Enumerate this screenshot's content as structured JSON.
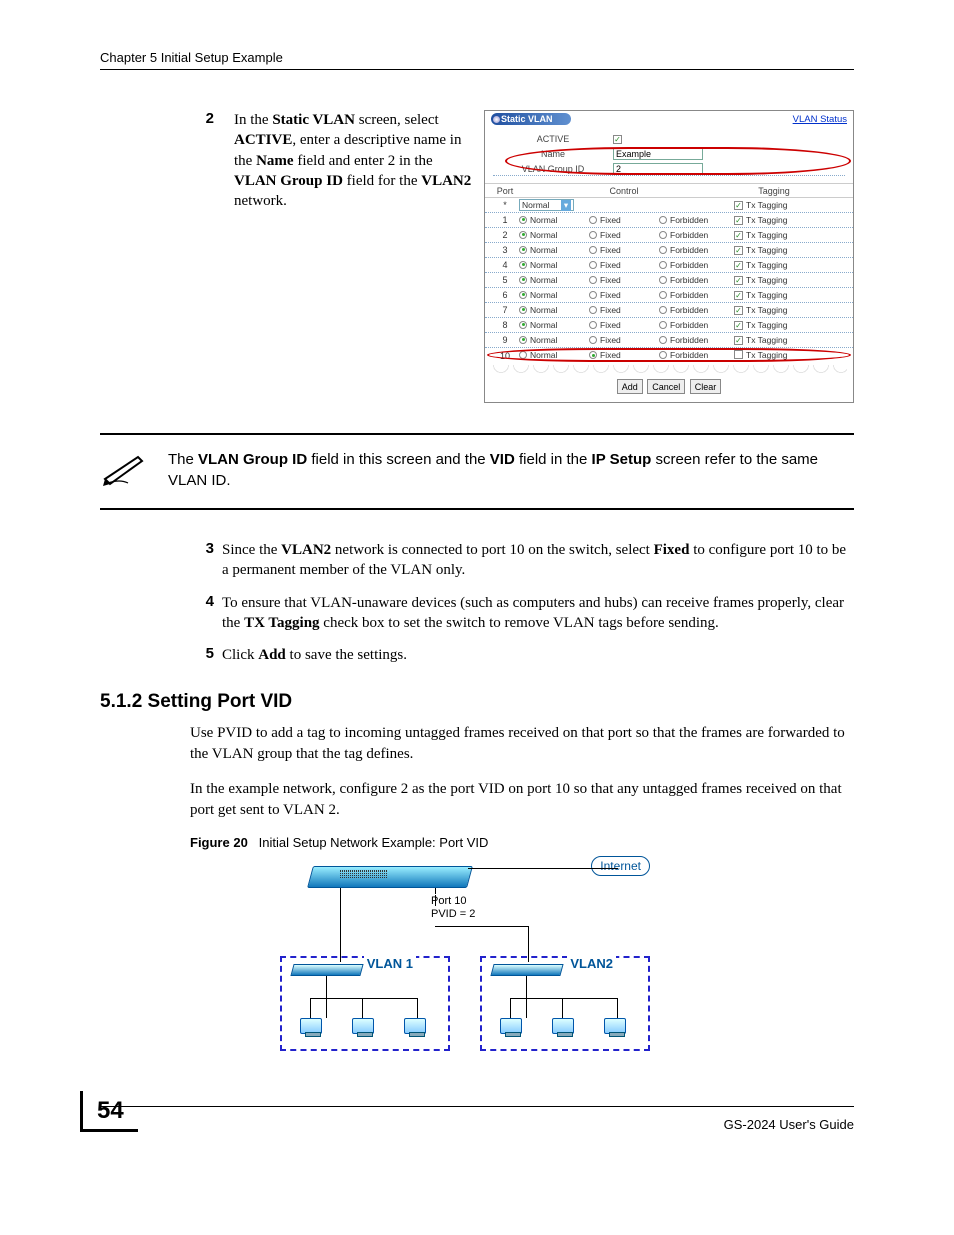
{
  "header": "Chapter 5 Initial Setup Example",
  "step2": {
    "num": "2",
    "text_parts": [
      "In the ",
      "Static VLAN",
      " screen, select ",
      "ACTIVE",
      ", enter a descriptive name in the ",
      "Name",
      " field and enter 2 in the ",
      "VLAN Group ID",
      " field for the ",
      "VLAN2",
      " network."
    ]
  },
  "screenshot": {
    "title": "Static VLAN",
    "status_link": "VLAN Status",
    "fields": {
      "active_label": "ACTIVE",
      "active_checked": true,
      "name_label": "Name",
      "name_value": "Example",
      "gid_label": "VLAN Group ID",
      "gid_value": "2"
    },
    "cols": {
      "port": "Port",
      "control": "Control",
      "tagging": "Tagging"
    },
    "star_row": {
      "port": "*",
      "select": "Normal",
      "tag_label": "Tx Tagging",
      "tag_checked": true
    },
    "option_labels": {
      "normal": "Normal",
      "fixed": "Fixed",
      "forbidden": "Forbidden",
      "txtag": "Tx Tagging"
    },
    "rows": [
      {
        "port": "1",
        "sel": "normal",
        "tag": true
      },
      {
        "port": "2",
        "sel": "normal",
        "tag": true
      },
      {
        "port": "3",
        "sel": "normal",
        "tag": true
      },
      {
        "port": "4",
        "sel": "normal",
        "tag": true
      },
      {
        "port": "5",
        "sel": "normal",
        "tag": true
      },
      {
        "port": "6",
        "sel": "normal",
        "tag": true
      },
      {
        "port": "7",
        "sel": "normal",
        "tag": true
      },
      {
        "port": "8",
        "sel": "normal",
        "tag": true
      },
      {
        "port": "9",
        "sel": "normal",
        "tag": true
      },
      {
        "port": "10",
        "sel": "fixed",
        "tag": false
      }
    ],
    "buttons": {
      "add": "Add",
      "cancel": "Cancel",
      "clear": "Clear"
    }
  },
  "note": {
    "parts": [
      "The ",
      "VLAN Group ID",
      " field in this screen and the ",
      "VID",
      " field in the ",
      "IP Setup",
      " screen refer to the same VLAN ID."
    ]
  },
  "step3": {
    "num": "3",
    "parts": [
      "Since the ",
      "VLAN2",
      " network is connected to port 10 on the switch, select ",
      "Fixed",
      " to configure port 10 to be a permanent member of the VLAN only."
    ]
  },
  "step4": {
    "num": "4",
    "parts": [
      "To ensure that VLAN-unaware devices (such as computers and hubs) can receive frames properly, clear the ",
      "TX Tagging",
      " check box to set the switch to remove VLAN tags before sending."
    ]
  },
  "step5": {
    "num": "5",
    "parts": [
      "Click ",
      "Add",
      " to save the settings."
    ]
  },
  "section": "5.1.2  Setting Port VID",
  "para1": "Use PVID to add a tag to incoming untagged frames received on that port so that the frames are forwarded to the VLAN group that the tag defines.",
  "para2": "In the example network, configure 2 as the port VID on port 10 so that any untagged frames received on that port get sent to VLAN 2.",
  "figure": {
    "num": "Figure 20",
    "caption": "Initial Setup Network Example: Port VID"
  },
  "diagram": {
    "internet": "Internet",
    "port_label_1": "Port 10",
    "port_label_2": "PVID = 2",
    "vlan1": "VLAN 1",
    "vlan2": "VLAN2"
  },
  "footer": {
    "page": "54",
    "guide": "GS-2024 User's Guide"
  },
  "colors": {
    "red_circle": "#c00",
    "blue_link": "#0030cc",
    "dash_blue": "#22c"
  }
}
